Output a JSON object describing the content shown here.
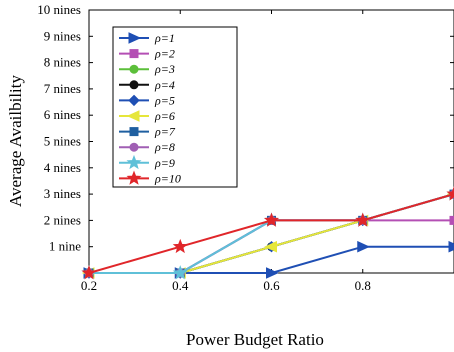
{
  "chart_data": {
    "type": "line",
    "xlabel": "Power Budget Ratio",
    "ylabel": "Average Availbility",
    "xlim": [
      0.2,
      1.0
    ],
    "ylim": [
      0,
      10
    ],
    "x_ticks": [
      0.2,
      0.4,
      0.6,
      0.8
    ],
    "x_tick_labels": [
      "0.2",
      "0.4",
      "0.6",
      "0.8"
    ],
    "y_ticks": [
      1,
      2,
      3,
      4,
      5,
      6,
      7,
      8,
      9,
      10
    ],
    "y_tick_labels": [
      "1 nine",
      "2 nines",
      "3 nines",
      "4 nines",
      "5 nines",
      "6 nines",
      "7 nines",
      "8 nines",
      "9 nines",
      "10 nines"
    ],
    "grid": false,
    "legend_position": "top-left",
    "x": [
      0.2,
      0.4,
      0.6,
      0.8,
      1.0
    ],
    "series": [
      {
        "name": "ρ=1",
        "color": "#1f4fb4",
        "marker": "triangle-right",
        "values": [
          0,
          0,
          0,
          1,
          1
        ]
      },
      {
        "name": "ρ=2",
        "color": "#b44fb4",
        "marker": "square",
        "values": [
          0,
          0,
          2,
          2,
          2
        ]
      },
      {
        "name": "ρ=3",
        "color": "#5cbf3a",
        "marker": "circle",
        "values": [
          0,
          0,
          1,
          2,
          3
        ]
      },
      {
        "name": "ρ=4",
        "color": "#111111",
        "marker": "circle",
        "values": [
          0,
          0,
          1,
          2,
          3
        ]
      },
      {
        "name": "ρ=5",
        "color": "#1f4fb4",
        "marker": "diamond",
        "values": [
          0,
          0,
          1,
          2,
          3
        ]
      },
      {
        "name": "ρ=6",
        "color": "#e6e63a",
        "marker": "triangle-left",
        "values": [
          0,
          0,
          1,
          2,
          3
        ]
      },
      {
        "name": "ρ=7",
        "color": "#1f5fa0",
        "marker": "square",
        "values": [
          0,
          0,
          2,
          2,
          3
        ]
      },
      {
        "name": "ρ=8",
        "color": "#a05fb4",
        "marker": "circle",
        "values": [
          0,
          0,
          2,
          2,
          3
        ]
      },
      {
        "name": "ρ=9",
        "color": "#5fc0d8",
        "marker": "star",
        "values": [
          0,
          0,
          2,
          2,
          3
        ]
      },
      {
        "name": "ρ=10",
        "color": "#e0262a",
        "marker": "star",
        "values": [
          0,
          1,
          2,
          2,
          3
        ]
      }
    ]
  }
}
